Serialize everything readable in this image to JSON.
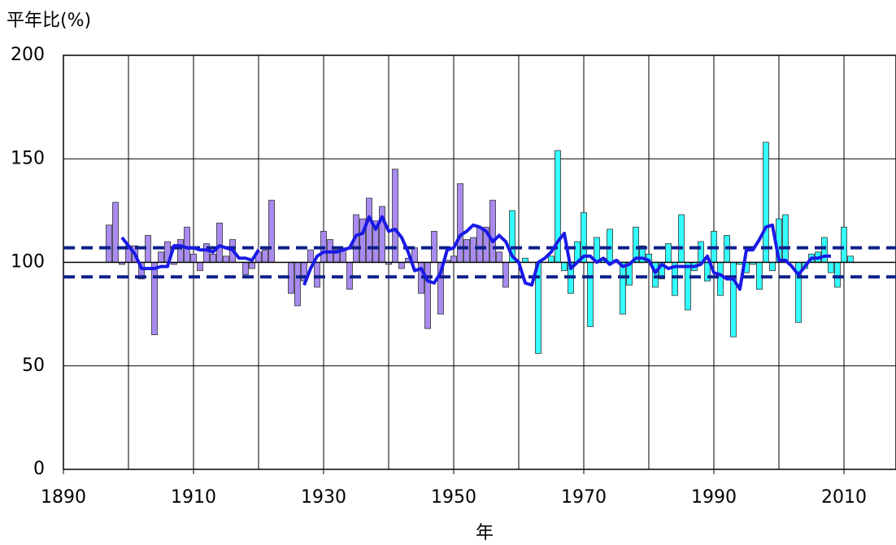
{
  "chart_data": {
    "type": "bar",
    "title": "平年比(%)",
    "x_label": "年",
    "xlim": [
      1890,
      2018
    ],
    "xticks": [
      1890,
      1910,
      1930,
      1950,
      1970,
      1990,
      2010
    ],
    "xgrid": [
      1900,
      1910,
      1920,
      1930,
      1940,
      1950,
      1960,
      1970,
      1980,
      1990,
      2000,
      2010
    ],
    "ylim": [
      0,
      200
    ],
    "yticks": [
      0,
      50,
      100,
      150,
      200
    ],
    "grid": true,
    "baseline": 100,
    "reference_lines": [
      107,
      93
    ],
    "reference_color": "#0d1f8a",
    "series": [
      {
        "type": "bar",
        "color": "#a98bf0",
        "x": [
          1897,
          1898,
          1899,
          1900,
          1901,
          1902,
          1903,
          1904,
          1905,
          1906,
          1907,
          1908,
          1909,
          1910,
          1911,
          1912,
          1913,
          1914,
          1915,
          1916,
          1917,
          1918,
          1919,
          1920,
          1921,
          1922,
          1923,
          1924,
          1925,
          1926,
          1927,
          1928,
          1929,
          1930,
          1931,
          1932,
          1933,
          1934,
          1935,
          1936,
          1937,
          1938,
          1939,
          1940,
          1941,
          1942,
          1943,
          1944,
          1945,
          1946,
          1947,
          1948,
          1949,
          1950,
          1951,
          1952,
          1953,
          1954,
          1955,
          1956,
          1957,
          1958
        ],
        "values": [
          118,
          129,
          99,
          108,
          108,
          92,
          113,
          65,
          105,
          110,
          99,
          111,
          117,
          104,
          96,
          109,
          104,
          119,
          103,
          111,
          100,
          94,
          97,
          105,
          106,
          130,
          100,
          100,
          85,
          79,
          91,
          106,
          88,
          115,
          111,
          106,
          107,
          87,
          123,
          121,
          131,
          120,
          127,
          99,
          145,
          97,
          102,
          107,
          85,
          68,
          115,
          75,
          101,
          103,
          138,
          111,
          112,
          117,
          117,
          130,
          105,
          88
        ]
      },
      {
        "type": "bar",
        "color": "#33ffff",
        "x": [
          1959,
          1960,
          1961,
          1962,
          1963,
          1964,
          1965,
          1966,
          1967,
          1968,
          1969,
          1970,
          1971,
          1972,
          1973,
          1974,
          1975,
          1976,
          1977,
          1978,
          1979,
          1980,
          1981,
          1982,
          1983,
          1984,
          1985,
          1986,
          1987,
          1988,
          1989,
          1990,
          1991,
          1992,
          1993,
          1994,
          1995,
          1996,
          1997,
          1998,
          1999,
          2000,
          2001,
          2002,
          2003,
          2004,
          2005,
          2006,
          2007,
          2008,
          2009,
          2010,
          2011
        ],
        "values": [
          125,
          100,
          102,
          100,
          56,
          100,
          103,
          154,
          96,
          85,
          110,
          124,
          69,
          112,
          102,
          116,
          101,
          75,
          89,
          117,
          108,
          104,
          88,
          92,
          109,
          84,
          123,
          77,
          96,
          110,
          91,
          115,
          84,
          113,
          64,
          99,
          95,
          99,
          87,
          158,
          96,
          121,
          123,
          100,
          71,
          97,
          104,
          105,
          112,
          95,
          88,
          117,
          103
        ]
      },
      {
        "type": "line",
        "color": "#1a1ae6",
        "x": [
          1899,
          1900,
          1901,
          1902,
          1903,
          1904,
          1905,
          1906,
          1907,
          1908,
          1909,
          1910,
          1911,
          1912,
          1913,
          1914,
          1915,
          1916,
          1917,
          1918,
          1919,
          1920,
          1921,
          1922,
          1923,
          1924,
          1925,
          1926,
          1927,
          1928,
          1929,
          1930,
          1931,
          1932,
          1933,
          1934,
          1935,
          1936,
          1937,
          1938,
          1939,
          1940,
          1941,
          1942,
          1943,
          1944,
          1945,
          1946,
          1947,
          1948,
          1949,
          1950,
          1951,
          1952,
          1953,
          1954,
          1955,
          1956,
          1957,
          1958,
          1959,
          1960,
          1961,
          1962,
          1963,
          1964,
          1965,
          1966,
          1967,
          1968,
          1969,
          1970,
          1971,
          1972,
          1973,
          1974,
          1975,
          1976,
          1977,
          1978,
          1979,
          1980,
          1981,
          1982,
          1983,
          1984,
          1985,
          1986,
          1987,
          1988,
          1989,
          1990,
          1991,
          1992,
          1993,
          1994,
          1995,
          1996,
          1997,
          1998,
          1999,
          2000,
          2001,
          2002,
          2003,
          2004,
          2005,
          2006,
          2007,
          2008
        ],
        "values": [
          112,
          108,
          104,
          97,
          97,
          97,
          98,
          98,
          108,
          108,
          107,
          107,
          106,
          106,
          105,
          108,
          107,
          106,
          102,
          102,
          101,
          106,
          null,
          null,
          null,
          null,
          null,
          null,
          89,
          97,
          103,
          105,
          105,
          105,
          106,
          107,
          113,
          114,
          122,
          116,
          122,
          115,
          116,
          112,
          105,
          96,
          97,
          91,
          90,
          95,
          106,
          107,
          113,
          115,
          118,
          117,
          115,
          110,
          113,
          110,
          103,
          100,
          90,
          89,
          100,
          102,
          105,
          110,
          114,
          97,
          100,
          103,
          103,
          100,
          102,
          99,
          101,
          98,
          99,
          102,
          102,
          101,
          95,
          99,
          97,
          98,
          98,
          98,
          98,
          99,
          103,
          95,
          94,
          92,
          92,
          87,
          106,
          106,
          111,
          117,
          118,
          101,
          101,
          98,
          94,
          98,
          102,
          102,
          103,
          103
        ]
      }
    ]
  }
}
